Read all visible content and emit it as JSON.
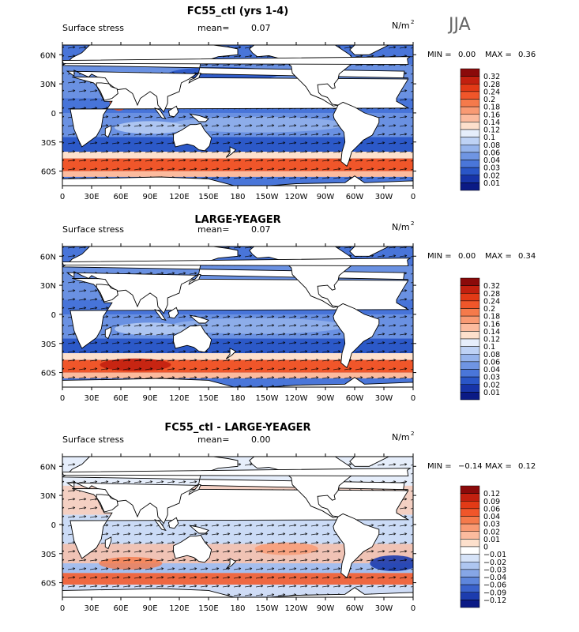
{
  "season": "JJA",
  "panels": [
    {
      "title": "FC55_ctl (yrs 1-4)",
      "field": "Surface stress",
      "mean_label": "mean=",
      "mean_value": "0.07",
      "units": "N/m",
      "units_exp": "2",
      "min_label": "MIN =",
      "min_value": "0.00",
      "max_label": "MAX =",
      "max_value": "0.36",
      "kind": "abs"
    },
    {
      "title": "LARGE-YEAGER",
      "field": "Surface stress",
      "mean_label": "mean=",
      "mean_value": "0.07",
      "units": "N/m",
      "units_exp": "2",
      "min_label": "MIN =",
      "min_value": "0.00",
      "max_label": "MAX =",
      "max_value": "0.34",
      "kind": "abs"
    },
    {
      "title": "FC55_ctl - LARGE-YEAGER",
      "field": "Surface stress",
      "mean_label": "mean=",
      "mean_value": "0.00",
      "units": "N/m",
      "units_exp": "2",
      "min_label": "MIN =",
      "min_value": "−0.14",
      "max_label": "MAX =",
      "max_value": "0.12",
      "kind": "diff"
    }
  ],
  "chart_data": [
    {
      "type": "heatmap",
      "title": "FC55_ctl (yrs 1-4)",
      "subtitle": "Surface stress",
      "xlabel": "",
      "ylabel": "",
      "x_ticks": [
        "0",
        "30E",
        "60E",
        "90E",
        "120E",
        "150E",
        "180",
        "150W",
        "120W",
        "90W",
        "60W",
        "30W",
        "0"
      ],
      "y_ticks": [
        "60N",
        "30N",
        "0",
        "30S",
        "60S"
      ],
      "colorbar_levels": [
        "0.32",
        "0.28",
        "0.24",
        "0.2",
        "0.18",
        "0.16",
        "0.14",
        "0.12",
        "0.1",
        "0.08",
        "0.06",
        "0.04",
        "0.03",
        "0.02",
        "0.01"
      ],
      "colorbar_colors": [
        "#8b0a0a",
        "#c2200f",
        "#e23a16",
        "#f0562a",
        "#f57a4b",
        "#f99a73",
        "#fcbb9e",
        "#fde0cc",
        "#e6eefb",
        "#bed2f5",
        "#96b4ec",
        "#6f95e3",
        "#4a76d9",
        "#2a56c7",
        "#1734a8",
        "#0b1a85"
      ],
      "mean": 0.07,
      "min": 0.0,
      "max": 0.36,
      "units": "N/m2"
    },
    {
      "type": "heatmap",
      "title": "LARGE-YEAGER",
      "subtitle": "Surface stress",
      "xlabel": "",
      "ylabel": "",
      "x_ticks": [
        "0",
        "30E",
        "60E",
        "90E",
        "120E",
        "150E",
        "180",
        "150W",
        "120W",
        "90W",
        "60W",
        "30W",
        "0"
      ],
      "y_ticks": [
        "60N",
        "30N",
        "0",
        "30S",
        "60S"
      ],
      "colorbar_levels": [
        "0.32",
        "0.28",
        "0.24",
        "0.2",
        "0.18",
        "0.16",
        "0.14",
        "0.12",
        "0.1",
        "0.08",
        "0.06",
        "0.04",
        "0.03",
        "0.02",
        "0.01"
      ],
      "colorbar_colors": [
        "#8b0a0a",
        "#c2200f",
        "#e23a16",
        "#f0562a",
        "#f57a4b",
        "#f99a73",
        "#fcbb9e",
        "#fde0cc",
        "#e6eefb",
        "#bed2f5",
        "#96b4ec",
        "#6f95e3",
        "#4a76d9",
        "#2a56c7",
        "#1734a8",
        "#0b1a85"
      ],
      "mean": 0.07,
      "min": 0.0,
      "max": 0.34,
      "units": "N/m2"
    },
    {
      "type": "heatmap",
      "title": "FC55_ctl - LARGE-YEAGER",
      "subtitle": "Surface stress",
      "xlabel": "",
      "ylabel": "",
      "x_ticks": [
        "0",
        "30E",
        "60E",
        "90E",
        "120E",
        "150E",
        "180",
        "150W",
        "120W",
        "90W",
        "60W",
        "30W",
        "0"
      ],
      "y_ticks": [
        "60N",
        "30N",
        "0",
        "30S",
        "60S"
      ],
      "colorbar_levels": [
        "0.12",
        "0.09",
        "0.06",
        "0.04",
        "0.03",
        "0.02",
        "0.01",
        "0",
        "−0.01",
        "−0.02",
        "−0.03",
        "−0.04",
        "−0.06",
        "−0.09",
        "−0.12"
      ],
      "colorbar_colors": [
        "#8b0a0a",
        "#c2200f",
        "#e23a16",
        "#f0562a",
        "#f57a4b",
        "#f99a73",
        "#fcbb9e",
        "#fde0cc",
        "#ffffff",
        "#d6e3f8",
        "#aec6f0",
        "#86a6e6",
        "#5e86dc",
        "#3a62cc",
        "#1c3cae",
        "#0b1a85"
      ],
      "mean": 0.0,
      "min": -0.14,
      "max": 0.12,
      "units": "N/m2"
    }
  ]
}
